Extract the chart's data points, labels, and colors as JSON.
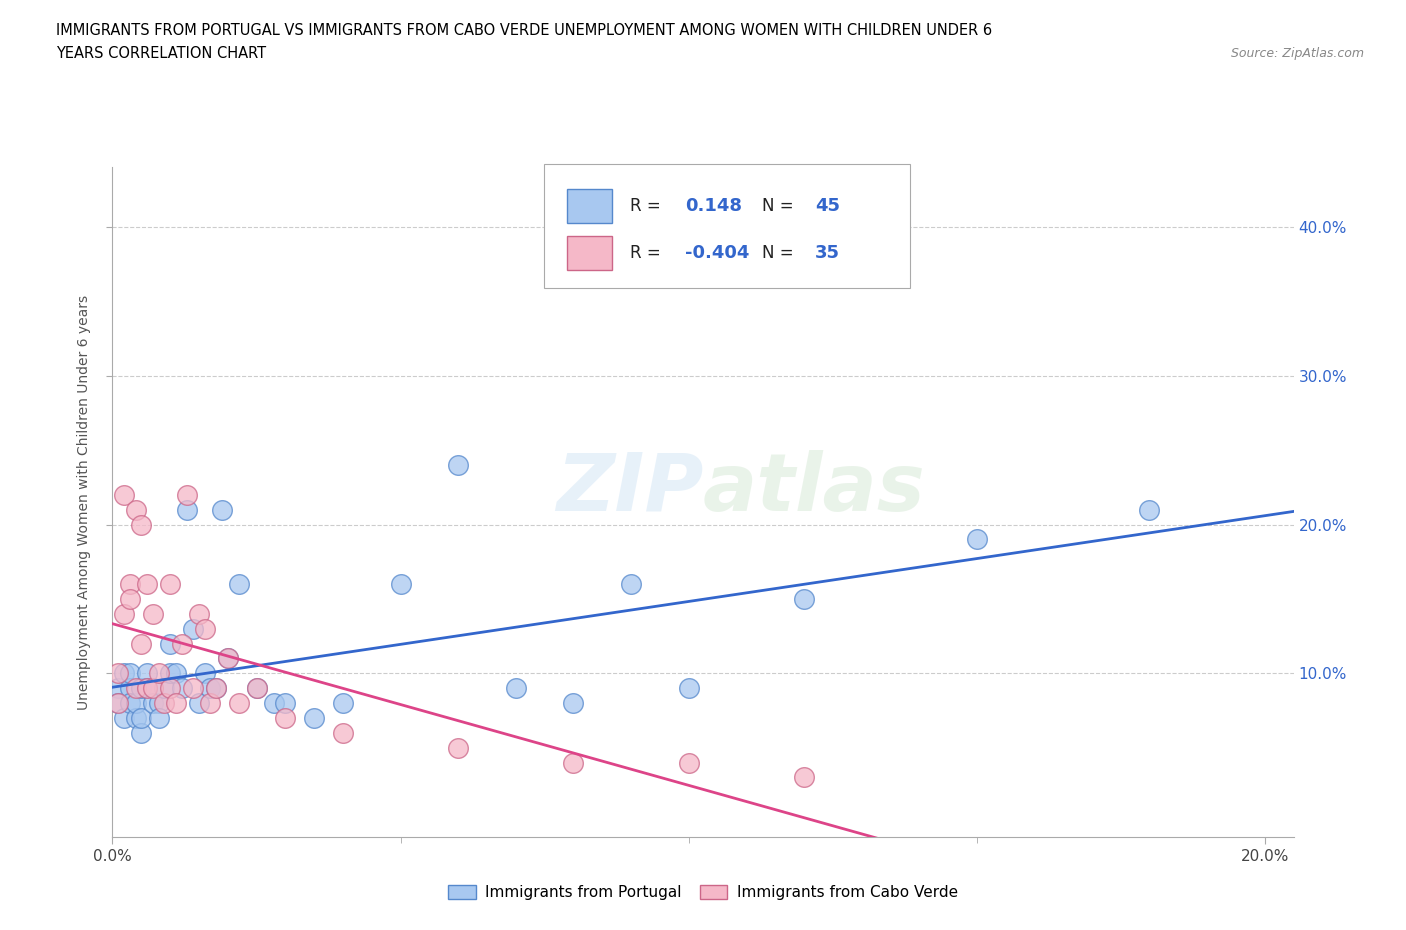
{
  "title_line1": "IMMIGRANTS FROM PORTUGAL VS IMMIGRANTS FROM CABO VERDE UNEMPLOYMENT AMONG WOMEN WITH CHILDREN UNDER 6",
  "title_line2": "YEARS CORRELATION CHART",
  "source_text": "Source: ZipAtlas.com",
  "ylabel": "Unemployment Among Women with Children Under 6 years",
  "xlim": [
    0.0,
    0.205
  ],
  "ylim": [
    -0.01,
    0.44
  ],
  "xticks": [
    0.0,
    0.2
  ],
  "yticks": [
    0.1,
    0.2,
    0.3,
    0.4
  ],
  "xtick_labels": [
    "0.0%",
    "20.0%"
  ],
  "ytick_labels": [
    "10.0%",
    "20.0%",
    "30.0%",
    "40.0%"
  ],
  "portugal_color": "#a8c8f0",
  "caboverde_color": "#f5b8c8",
  "portugal_edge_color": "#5588cc",
  "caboverde_edge_color": "#cc6688",
  "portugal_line_color": "#3366cc",
  "caboverde_line_color": "#dd4488",
  "R_portugal": 0.148,
  "N_portugal": 45,
  "R_caboverde": -0.404,
  "N_caboverde": 35,
  "legend_label_portugal": "Immigrants from Portugal",
  "legend_label_caboverde": "Immigrants from Cabo Verde",
  "watermark": "ZIPatlas",
  "portugal_x": [
    0.001,
    0.001,
    0.002,
    0.002,
    0.003,
    0.003,
    0.003,
    0.004,
    0.004,
    0.005,
    0.005,
    0.005,
    0.006,
    0.006,
    0.007,
    0.008,
    0.008,
    0.009,
    0.01,
    0.01,
    0.011,
    0.012,
    0.013,
    0.014,
    0.015,
    0.016,
    0.017,
    0.018,
    0.019,
    0.02,
    0.022,
    0.025,
    0.028,
    0.03,
    0.035,
    0.04,
    0.05,
    0.06,
    0.07,
    0.08,
    0.09,
    0.1,
    0.12,
    0.15,
    0.18
  ],
  "portugal_y": [
    0.09,
    0.08,
    0.1,
    0.07,
    0.09,
    0.08,
    0.1,
    0.07,
    0.08,
    0.09,
    0.06,
    0.07,
    0.1,
    0.09,
    0.08,
    0.08,
    0.07,
    0.09,
    0.1,
    0.12,
    0.1,
    0.09,
    0.21,
    0.13,
    0.08,
    0.1,
    0.09,
    0.09,
    0.21,
    0.11,
    0.16,
    0.09,
    0.08,
    0.08,
    0.07,
    0.08,
    0.16,
    0.24,
    0.09,
    0.08,
    0.16,
    0.09,
    0.15,
    0.19,
    0.21
  ],
  "caboverde_x": [
    0.001,
    0.001,
    0.002,
    0.002,
    0.003,
    0.003,
    0.004,
    0.004,
    0.005,
    0.005,
    0.006,
    0.006,
    0.007,
    0.007,
    0.008,
    0.009,
    0.01,
    0.01,
    0.011,
    0.012,
    0.013,
    0.014,
    0.015,
    0.016,
    0.017,
    0.018,
    0.02,
    0.022,
    0.025,
    0.03,
    0.04,
    0.06,
    0.08,
    0.1,
    0.12
  ],
  "caboverde_y": [
    0.08,
    0.1,
    0.14,
    0.22,
    0.16,
    0.15,
    0.09,
    0.21,
    0.2,
    0.12,
    0.16,
    0.09,
    0.09,
    0.14,
    0.1,
    0.08,
    0.16,
    0.09,
    0.08,
    0.12,
    0.22,
    0.09,
    0.14,
    0.13,
    0.08,
    0.09,
    0.11,
    0.08,
    0.09,
    0.07,
    0.06,
    0.05,
    0.04,
    0.04,
    0.03
  ]
}
